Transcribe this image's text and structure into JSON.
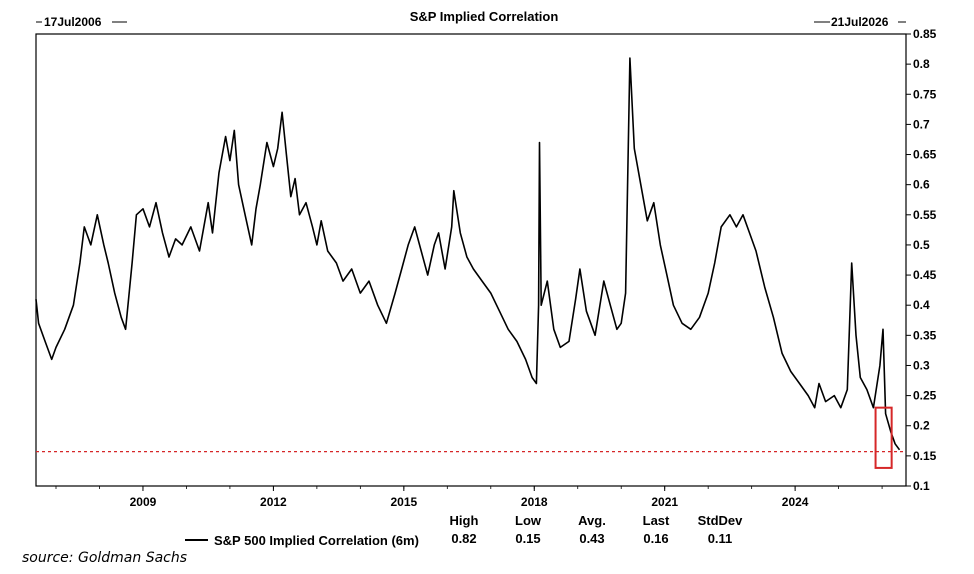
{
  "chart_data": {
    "type": "line",
    "title": "S&P Implied Correlation",
    "start_label": "17Jul2006",
    "end_label": "21Jul2026",
    "ylim": [
      0.1,
      0.85
    ],
    "yticks": [
      "0.85",
      "0.8",
      "0.75",
      "0.7",
      "0.65",
      "0.6",
      "0.55",
      "0.5",
      "0.45",
      "0.4",
      "0.35",
      "0.3",
      "0.25",
      "0.2",
      "0.15",
      "0.1"
    ],
    "y_axis_side": "right",
    "xticks": [
      {
        "label": "2009",
        "x": 2009.0
      },
      {
        "label": "2012",
        "x": 2012.0
      },
      {
        "label": "2015",
        "x": 2015.0
      },
      {
        "label": "2018",
        "x": 2018.0
      },
      {
        "label": "2021",
        "x": 2021.0
      },
      {
        "label": "2024",
        "x": 2024.0
      }
    ],
    "xlim": [
      2006.54,
      2026.55
    ],
    "grid": false,
    "reference_line": {
      "y": 0.157,
      "style": "dotted",
      "color": "#d62728"
    },
    "highlight_box": {
      "x0": 2025.85,
      "x1": 2026.22,
      "y0": 0.13,
      "y1": 0.23,
      "color": "#d62728"
    },
    "series": [
      {
        "name": "S&P 500 Implied Correlation (6m)",
        "color": "#000000",
        "points": [
          [
            2006.54,
            0.41
          ],
          [
            2006.6,
            0.37
          ],
          [
            2006.75,
            0.34
          ],
          [
            2006.9,
            0.31
          ],
          [
            2007.0,
            0.33
          ],
          [
            2007.2,
            0.36
          ],
          [
            2007.4,
            0.4
          ],
          [
            2007.55,
            0.47
          ],
          [
            2007.65,
            0.53
          ],
          [
            2007.8,
            0.5
          ],
          [
            2007.95,
            0.55
          ],
          [
            2008.1,
            0.5
          ],
          [
            2008.2,
            0.47
          ],
          [
            2008.35,
            0.42
          ],
          [
            2008.5,
            0.38
          ],
          [
            2008.6,
            0.36
          ],
          [
            2008.75,
            0.47
          ],
          [
            2008.85,
            0.55
          ],
          [
            2009.0,
            0.56
          ],
          [
            2009.15,
            0.53
          ],
          [
            2009.3,
            0.57
          ],
          [
            2009.45,
            0.52
          ],
          [
            2009.6,
            0.48
          ],
          [
            2009.75,
            0.51
          ],
          [
            2009.9,
            0.5
          ],
          [
            2010.1,
            0.53
          ],
          [
            2010.3,
            0.49
          ],
          [
            2010.5,
            0.57
          ],
          [
            2010.6,
            0.52
          ],
          [
            2010.75,
            0.62
          ],
          [
            2010.9,
            0.68
          ],
          [
            2011.0,
            0.64
          ],
          [
            2011.1,
            0.69
          ],
          [
            2011.2,
            0.6
          ],
          [
            2011.35,
            0.55
          ],
          [
            2011.5,
            0.5
          ],
          [
            2011.6,
            0.56
          ],
          [
            2011.7,
            0.6
          ],
          [
            2011.85,
            0.67
          ],
          [
            2012.0,
            0.63
          ],
          [
            2012.1,
            0.66
          ],
          [
            2012.2,
            0.72
          ],
          [
            2012.3,
            0.65
          ],
          [
            2012.4,
            0.58
          ],
          [
            2012.5,
            0.61
          ],
          [
            2012.6,
            0.55
          ],
          [
            2012.75,
            0.57
          ],
          [
            2012.9,
            0.53
          ],
          [
            2013.0,
            0.5
          ],
          [
            2013.1,
            0.54
          ],
          [
            2013.25,
            0.49
          ],
          [
            2013.45,
            0.47
          ],
          [
            2013.6,
            0.44
          ],
          [
            2013.8,
            0.46
          ],
          [
            2014.0,
            0.42
          ],
          [
            2014.2,
            0.44
          ],
          [
            2014.4,
            0.4
          ],
          [
            2014.6,
            0.37
          ],
          [
            2014.8,
            0.42
          ],
          [
            2014.95,
            0.46
          ],
          [
            2015.1,
            0.5
          ],
          [
            2015.25,
            0.53
          ],
          [
            2015.4,
            0.49
          ],
          [
            2015.55,
            0.45
          ],
          [
            2015.7,
            0.5
          ],
          [
            2015.8,
            0.52
          ],
          [
            2015.95,
            0.46
          ],
          [
            2016.1,
            0.53
          ],
          [
            2016.15,
            0.59
          ],
          [
            2016.3,
            0.52
          ],
          [
            2016.45,
            0.48
          ],
          [
            2016.6,
            0.46
          ],
          [
            2016.8,
            0.44
          ],
          [
            2017.0,
            0.42
          ],
          [
            2017.2,
            0.39
          ],
          [
            2017.4,
            0.36
          ],
          [
            2017.6,
            0.34
          ],
          [
            2017.8,
            0.31
          ],
          [
            2017.95,
            0.28
          ],
          [
            2018.05,
            0.27
          ],
          [
            2018.1,
            0.4
          ],
          [
            2018.12,
            0.67
          ],
          [
            2018.16,
            0.4
          ],
          [
            2018.3,
            0.44
          ],
          [
            2018.45,
            0.36
          ],
          [
            2018.6,
            0.33
          ],
          [
            2018.8,
            0.34
          ],
          [
            2018.95,
            0.41
          ],
          [
            2019.05,
            0.46
          ],
          [
            2019.2,
            0.39
          ],
          [
            2019.4,
            0.35
          ],
          [
            2019.6,
            0.44
          ],
          [
            2019.75,
            0.4
          ],
          [
            2019.9,
            0.36
          ],
          [
            2020.0,
            0.37
          ],
          [
            2020.1,
            0.42
          ],
          [
            2020.2,
            0.81
          ],
          [
            2020.3,
            0.66
          ],
          [
            2020.45,
            0.6
          ],
          [
            2020.6,
            0.54
          ],
          [
            2020.75,
            0.57
          ],
          [
            2020.9,
            0.5
          ],
          [
            2021.05,
            0.45
          ],
          [
            2021.2,
            0.4
          ],
          [
            2021.4,
            0.37
          ],
          [
            2021.6,
            0.36
          ],
          [
            2021.8,
            0.38
          ],
          [
            2022.0,
            0.42
          ],
          [
            2022.15,
            0.47
          ],
          [
            2022.3,
            0.53
          ],
          [
            2022.5,
            0.55
          ],
          [
            2022.65,
            0.53
          ],
          [
            2022.8,
            0.55
          ],
          [
            2022.95,
            0.52
          ],
          [
            2023.1,
            0.49
          ],
          [
            2023.3,
            0.43
          ],
          [
            2023.5,
            0.38
          ],
          [
            2023.7,
            0.32
          ],
          [
            2023.9,
            0.29
          ],
          [
            2024.1,
            0.27
          ],
          [
            2024.3,
            0.25
          ],
          [
            2024.45,
            0.23
          ],
          [
            2024.55,
            0.27
          ],
          [
            2024.7,
            0.24
          ],
          [
            2024.9,
            0.25
          ],
          [
            2025.05,
            0.23
          ],
          [
            2025.2,
            0.26
          ],
          [
            2025.3,
            0.47
          ],
          [
            2025.4,
            0.35
          ],
          [
            2025.5,
            0.28
          ],
          [
            2025.65,
            0.26
          ],
          [
            2025.8,
            0.23
          ],
          [
            2025.95,
            0.3
          ],
          [
            2026.02,
            0.36
          ],
          [
            2026.08,
            0.22
          ],
          [
            2026.2,
            0.19
          ],
          [
            2026.3,
            0.17
          ],
          [
            2026.4,
            0.16
          ]
        ]
      }
    ],
    "stats": {
      "legend_label": "S&P 500 Implied Correlation (6m)",
      "headers": [
        "High",
        "Low",
        "Avg.",
        "Last",
        "StdDev"
      ],
      "values": [
        "0.82",
        "0.15",
        "0.43",
        "0.16",
        "0.11"
      ]
    }
  },
  "source": "source: Goldman Sachs"
}
